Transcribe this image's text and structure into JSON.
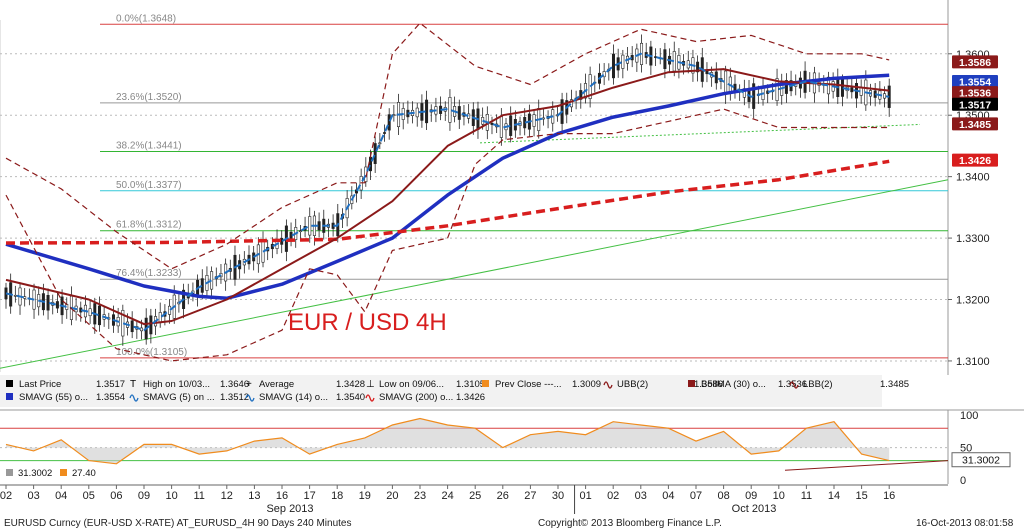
{
  "chart_data": {
    "type": "line",
    "title": "EUR / USD 4H",
    "x_date_labels": [
      "02",
      "03",
      "04",
      "05",
      "06",
      "09",
      "10",
      "11",
      "12",
      "13",
      "16",
      "17",
      "18",
      "19",
      "20",
      "23",
      "24",
      "25",
      "26",
      "27",
      "30",
      "01",
      "02",
      "03",
      "04",
      "07",
      "08",
      "09",
      "10",
      "11",
      "14",
      "15",
      "16"
    ],
    "month_labels": [
      "Sep 2013",
      "Oct 2013"
    ],
    "y_ticks": [
      "1.3600",
      "1.3500",
      "1.3400",
      "1.3300",
      "1.3200",
      "1.3100"
    ],
    "ylim": [
      1.3082,
      1.3655
    ],
    "fib_levels": [
      {
        "label": "0.0%(1.3648)",
        "value": 1.3648,
        "color": "#d94040"
      },
      {
        "label": "23.6%(1.3520)",
        "value": 1.352,
        "color": "#999999"
      },
      {
        "label": "38.2%(1.3441)",
        "value": 1.3441,
        "color": "#33b533"
      },
      {
        "label": "50.0%(1.3377)",
        "value": 1.3377,
        "color": "#33c8d8"
      },
      {
        "label": "61.8%(1.3312)",
        "value": 1.3312,
        "color": "#33b533"
      },
      {
        "label": "76.4%(1.3233)",
        "value": 1.3233,
        "color": "#999999"
      },
      {
        "label": "100.0%(1.3105)",
        "value": 1.3105,
        "color": "#d94040"
      }
    ],
    "price_badges": [
      {
        "value": "1.3586",
        "bg": "#8b1a1a",
        "fg": "#ffffff",
        "y": 1.3586
      },
      {
        "value": "1.3554",
        "bg": "#1f3fbf",
        "fg": "#ffffff",
        "y": 1.3554
      },
      {
        "value": "1.3536",
        "bg": "#8b1a1a",
        "fg": "#ffffff",
        "y": 1.3536
      },
      {
        "value": "1.3517",
        "bg": "#000000",
        "fg": "#ffffff",
        "y": 1.3517
      },
      {
        "value": "1.3485",
        "bg": "#8b1a1a",
        "fg": "#ffffff",
        "y": 1.3485
      },
      {
        "value": "1.3426",
        "bg": "#d81e1e",
        "fg": "#ffffff",
        "y": 1.3426
      }
    ],
    "series": [
      {
        "name": "SMAVG (55)",
        "color": "#1f2fc0",
        "values": [
          [
            0,
            1.329
          ],
          [
            3,
            1.325
          ],
          [
            5,
            1.3222
          ],
          [
            7,
            1.3205
          ],
          [
            8,
            1.3202
          ],
          [
            10,
            1.3225
          ],
          [
            12,
            1.3262
          ],
          [
            14,
            1.33
          ],
          [
            16,
            1.337
          ],
          [
            18,
            1.343
          ],
          [
            20,
            1.347
          ],
          [
            22,
            1.3497
          ],
          [
            24,
            1.3515
          ],
          [
            26,
            1.3535
          ],
          [
            28,
            1.355
          ],
          [
            30,
            1.356
          ],
          [
            32,
            1.3565
          ]
        ]
      },
      {
        "name": "SMAVG (200)",
        "color": "#d81e1e",
        "values": [
          [
            0,
            1.3292
          ],
          [
            6,
            1.3293
          ],
          [
            12,
            1.3298
          ],
          [
            16,
            1.332
          ],
          [
            20,
            1.3348
          ],
          [
            24,
            1.3375
          ],
          [
            28,
            1.3395
          ],
          [
            32,
            1.3425
          ]
        ]
      },
      {
        "name": "BollMA (30)",
        "color": "#8b1a1a",
        "values": [
          [
            0,
            1.3232
          ],
          [
            3,
            1.32
          ],
          [
            5,
            1.316
          ],
          [
            6,
            1.3165
          ],
          [
            8,
            1.32
          ],
          [
            10,
            1.325
          ],
          [
            12,
            1.33
          ],
          [
            14,
            1.336
          ],
          [
            16,
            1.345
          ],
          [
            18,
            1.35
          ],
          [
            20,
            1.3515
          ],
          [
            22,
            1.3545
          ],
          [
            24,
            1.357
          ],
          [
            26,
            1.3575
          ],
          [
            28,
            1.3555
          ],
          [
            30,
            1.355
          ],
          [
            32,
            1.354
          ]
        ]
      },
      {
        "name": "SMAVG (14)",
        "color": "#1f6fc0",
        "values": [
          [
            0,
            1.321
          ],
          [
            3,
            1.318
          ],
          [
            5,
            1.315
          ],
          [
            7,
            1.322
          ],
          [
            9,
            1.327
          ],
          [
            11,
            1.332
          ],
          [
            12,
            1.332
          ],
          [
            13,
            1.34
          ],
          [
            14,
            1.35
          ],
          [
            16,
            1.351
          ],
          [
            18,
            1.348
          ],
          [
            20,
            1.35
          ],
          [
            22,
            1.358
          ],
          [
            23,
            1.36
          ],
          [
            25,
            1.358
          ],
          [
            27,
            1.353
          ],
          [
            29,
            1.3555
          ],
          [
            32,
            1.353
          ]
        ]
      },
      {
        "name": "UBB(2)",
        "color": "#8b1a1a",
        "values": [
          [
            0,
            1.343
          ],
          [
            2,
            1.338
          ],
          [
            4,
            1.331
          ],
          [
            6,
            1.325
          ],
          [
            8,
            1.329
          ],
          [
            10,
            1.335
          ],
          [
            12,
            1.339
          ],
          [
            13,
            1.339
          ],
          [
            14,
            1.36
          ],
          [
            15,
            1.365
          ],
          [
            17,
            1.358
          ],
          [
            19,
            1.355
          ],
          [
            21,
            1.36
          ],
          [
            23,
            1.364
          ],
          [
            25,
            1.362
          ],
          [
            27,
            1.363
          ],
          [
            29,
            1.36
          ],
          [
            31,
            1.36
          ],
          [
            32,
            1.359
          ]
        ]
      },
      {
        "name": "LBB(2)",
        "color": "#8b1a1a",
        "values": [
          [
            0,
            1.337
          ],
          [
            2,
            1.32
          ],
          [
            4,
            1.312
          ],
          [
            6,
            1.31
          ],
          [
            8,
            1.311
          ],
          [
            10,
            1.315
          ],
          [
            11,
            1.325
          ],
          [
            12,
            1.324
          ],
          [
            13,
            1.318
          ],
          [
            14,
            1.328
          ],
          [
            16,
            1.33
          ],
          [
            17,
            1.342
          ],
          [
            18,
            1.346
          ],
          [
            20,
            1.347
          ],
          [
            22,
            1.347
          ],
          [
            24,
            1.349
          ],
          [
            26,
            1.351
          ],
          [
            28,
            1.348
          ],
          [
            30,
            1.348
          ],
          [
            32,
            1.348
          ]
        ]
      }
    ],
    "legend": [
      {
        "label": "Last Price",
        "value": "1.3517",
        "swatch": "#000000",
        "kind": "box"
      },
      {
        "label": "High on 10/03...",
        "value": "1.3646",
        "swatch": "#000000",
        "kind": "text",
        "glyph": "T"
      },
      {
        "label": "Average",
        "value": "1.3428",
        "swatch": "#000000",
        "kind": "text",
        "glyph": "+"
      },
      {
        "label": "Low on 09/06...",
        "value": "1.3105",
        "swatch": "#000000",
        "kind": "text",
        "glyph": "⊥"
      },
      {
        "label": "Prev Close ---...",
        "value": "1.3009",
        "swatch": "#f08c1e",
        "kind": "box"
      },
      {
        "label": "UBB(2)",
        "value": "1.3586",
        "swatch": "#8b1a1a",
        "kind": "line"
      },
      {
        "label": "BollMA (30) o...",
        "value": "1.3536",
        "swatch": "#8b1a1a",
        "kind": "box"
      },
      {
        "label": "LBB(2)",
        "value": "1.3485",
        "swatch": "#8b1a1a",
        "kind": "line"
      },
      {
        "label": "SMAVG (55) o...",
        "value": "1.3554",
        "swatch": "#1f2fc0",
        "kind": "box"
      },
      {
        "label": "SMAVG (5) on ...",
        "value": "1.3512",
        "swatch": "#1f6fc0",
        "kind": "line"
      },
      {
        "label": "SMAVG (14) o...",
        "value": "1.3540",
        "swatch": "#1f6fc0",
        "kind": "line"
      },
      {
        "label": "SMAVG (200) o...",
        "value": "1.3426",
        "swatch": "#d81e1e",
        "kind": "line"
      }
    ],
    "oscillator": {
      "y_ticks": [
        "100",
        "50",
        "0"
      ],
      "ylim": [
        0,
        105
      ],
      "badge": "31.3002",
      "readouts": [
        {
          "label": "31.3002",
          "color": "#999999"
        },
        {
          "label": "27.40",
          "color": "#f08c1e"
        }
      ],
      "values": [
        [
          0,
          55
        ],
        [
          1,
          45
        ],
        [
          2,
          62
        ],
        [
          3,
          30
        ],
        [
          4,
          25
        ],
        [
          5,
          55
        ],
        [
          6,
          55
        ],
        [
          7,
          40
        ],
        [
          8,
          45
        ],
        [
          9,
          60
        ],
        [
          10,
          65
        ],
        [
          11,
          40
        ],
        [
          12,
          55
        ],
        [
          13,
          65
        ],
        [
          14,
          85
        ],
        [
          15,
          95
        ],
        [
          16,
          85
        ],
        [
          17,
          80
        ],
        [
          18,
          50
        ],
        [
          19,
          70
        ],
        [
          20,
          75
        ],
        [
          21,
          70
        ],
        [
          22,
          90
        ],
        [
          23,
          85
        ],
        [
          24,
          80
        ],
        [
          25,
          60
        ],
        [
          26,
          75
        ],
        [
          27,
          40
        ],
        [
          28,
          45
        ],
        [
          29,
          80
        ],
        [
          30,
          90
        ],
        [
          31,
          40
        ],
        [
          32,
          30
        ]
      ]
    }
  },
  "footer": {
    "left": "EURUSD Curncy (EUR-USD X-RATE) AT_EURUSD_4H 90 Days 240 Minutes",
    "center": "Copyright© 2013 Bloomberg Finance L.P.",
    "right": "16-Oct-2013 08:01:58"
  }
}
